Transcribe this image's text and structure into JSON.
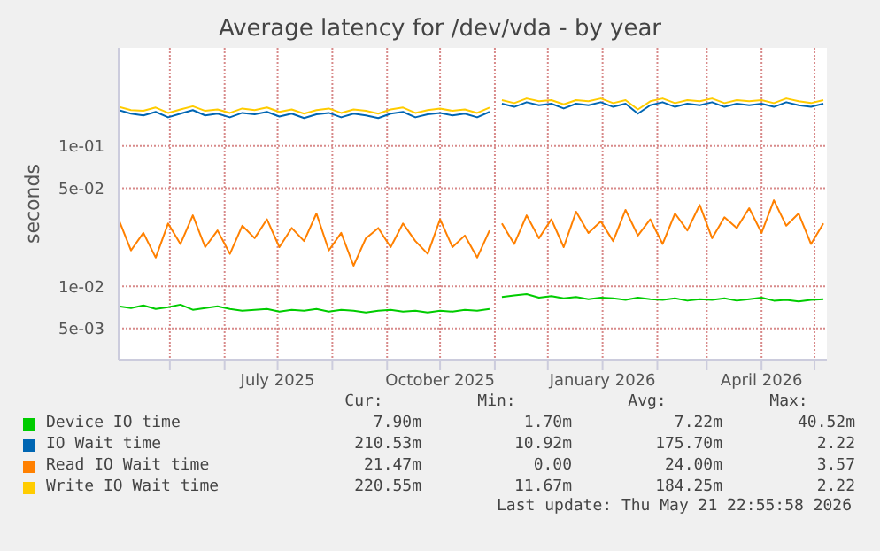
{
  "chart_data": {
    "type": "line",
    "title": "Average latency for /dev/vda - by year",
    "ylabel": "seconds",
    "log": "y",
    "grid": true,
    "legend": "bottom",
    "marker": "none",
    "line_style": "solid",
    "x": [
      "2025-04-02",
      "2025-04-09",
      "2025-04-16",
      "2025-04-23",
      "2025-04-30",
      "2025-05-07",
      "2025-05-14",
      "2025-05-21",
      "2025-05-28",
      "2025-06-04",
      "2025-06-11",
      "2025-06-18",
      "2025-06-25",
      "2025-07-02",
      "2025-07-09",
      "2025-07-16",
      "2025-07-23",
      "2025-07-30",
      "2025-08-06",
      "2025-08-13",
      "2025-08-20",
      "2025-08-27",
      "2025-09-03",
      "2025-09-10",
      "2025-09-17",
      "2025-09-24",
      "2025-10-01",
      "2025-10-08",
      "2025-10-15",
      "2025-10-22",
      "2025-10-29",
      "2025-11-01",
      "2025-11-05",
      "2025-11-12",
      "2025-11-19",
      "2025-11-26",
      "2025-12-03",
      "2025-12-10",
      "2025-12-17",
      "2025-12-24",
      "2025-12-31",
      "2026-01-07",
      "2026-01-14",
      "2026-01-21",
      "2026-01-28",
      "2026-02-04",
      "2026-02-11",
      "2026-02-18",
      "2026-02-25",
      "2026-03-04",
      "2026-03-11",
      "2026-03-18",
      "2026-03-25",
      "2026-04-01",
      "2026-04-08",
      "2026-04-15",
      "2026-04-22",
      "2026-04-29",
      "2026-05-06"
    ],
    "xlim": [
      "2025-04-02",
      "2026-05-08"
    ],
    "xticks": [
      {
        "value": "2025-05-01",
        "label": null
      },
      {
        "value": "2025-06-01",
        "label": null
      },
      {
        "value": "2025-07-01",
        "label": "July 2025"
      },
      {
        "value": "2025-08-01",
        "label": null
      },
      {
        "value": "2025-09-01",
        "label": null
      },
      {
        "value": "2025-10-01",
        "label": "October 2025"
      },
      {
        "value": "2025-11-01",
        "label": null
      },
      {
        "value": "2025-12-01",
        "label": null
      },
      {
        "value": "2026-01-01",
        "label": "January 2026"
      },
      {
        "value": "2026-02-01",
        "label": null
      },
      {
        "value": "2026-03-01",
        "label": null
      },
      {
        "value": "2026-04-01",
        "label": "April 2026"
      },
      {
        "value": "2026-05-01",
        "label": null
      }
    ],
    "ylim": [
      0.003,
      0.5
    ],
    "yticks": [
      {
        "value": 0.005,
        "label": "5e-03"
      },
      {
        "value": 0.01,
        "label": "1e-02"
      },
      {
        "value": 0.05,
        "label": "5e-02"
      },
      {
        "value": 0.1,
        "label": "1e-01"
      }
    ],
    "series": [
      {
        "name": "Device IO time",
        "color": "#00cc00",
        "values": [
          0.0072,
          0.007,
          0.0073,
          0.0069,
          0.0071,
          0.0074,
          0.0068,
          0.007,
          0.0072,
          0.0069,
          0.0067,
          0.0068,
          0.0069,
          0.0066,
          0.0068,
          0.0067,
          0.0069,
          0.0066,
          0.0068,
          0.0067,
          0.0065,
          0.0067,
          0.0068,
          0.0066,
          0.0067,
          0.0065,
          0.0067,
          0.0066,
          0.0068,
          0.0067,
          0.0069,
          null,
          0.0084,
          0.0086,
          0.0088,
          0.0083,
          0.0085,
          0.0082,
          0.0084,
          0.0081,
          0.0083,
          0.0082,
          0.008,
          0.0083,
          0.0081,
          0.008,
          0.0082,
          0.0079,
          0.0081,
          0.008,
          0.0082,
          0.0079,
          0.0081,
          0.0083,
          0.0079,
          0.008,
          0.0078,
          0.008,
          0.0081
        ]
      },
      {
        "name": "IO Wait time",
        "color": "#0066b3",
        "values": [
          0.18,
          0.17,
          0.165,
          0.175,
          0.16,
          0.17,
          0.18,
          0.165,
          0.17,
          0.16,
          0.172,
          0.168,
          0.175,
          0.162,
          0.17,
          0.158,
          0.168,
          0.172,
          0.16,
          0.17,
          0.165,
          0.158,
          0.17,
          0.175,
          0.16,
          0.168,
          0.172,
          0.165,
          0.17,
          0.16,
          0.175,
          null,
          0.2,
          0.19,
          0.205,
          0.195,
          0.2,
          0.185,
          0.2,
          0.195,
          0.205,
          0.19,
          0.2,
          0.17,
          0.195,
          0.205,
          0.19,
          0.2,
          0.195,
          0.205,
          0.19,
          0.2,
          0.195,
          0.2,
          0.19,
          0.205,
          0.195,
          0.19,
          0.2
        ]
      },
      {
        "name": "Read IO Wait time",
        "color": "#ff8000",
        "values": [
          0.03,
          0.018,
          0.024,
          0.016,
          0.028,
          0.02,
          0.032,
          0.019,
          0.025,
          0.017,
          0.027,
          0.022,
          0.03,
          0.019,
          0.026,
          0.021,
          0.033,
          0.018,
          0.024,
          0.014,
          0.022,
          0.026,
          0.019,
          0.028,
          0.021,
          0.017,
          0.03,
          0.019,
          0.023,
          0.016,
          0.025,
          null,
          0.028,
          0.02,
          0.032,
          0.022,
          0.03,
          0.019,
          0.034,
          0.024,
          0.029,
          0.021,
          0.035,
          0.023,
          0.03,
          0.02,
          0.033,
          0.025,
          0.038,
          0.022,
          0.031,
          0.026,
          0.036,
          0.024,
          0.041,
          0.027,
          0.033,
          0.02,
          0.028
        ]
      },
      {
        "name": "Write IO Wait time",
        "color": "#ffcc00",
        "values": [
          0.19,
          0.18,
          0.178,
          0.188,
          0.172,
          0.182,
          0.192,
          0.178,
          0.182,
          0.172,
          0.185,
          0.18,
          0.188,
          0.175,
          0.182,
          0.17,
          0.18,
          0.185,
          0.172,
          0.182,
          0.178,
          0.17,
          0.182,
          0.188,
          0.172,
          0.18,
          0.185,
          0.178,
          0.182,
          0.172,
          0.188,
          null,
          0.212,
          0.202,
          0.218,
          0.208,
          0.212,
          0.198,
          0.212,
          0.208,
          0.218,
          0.202,
          0.212,
          0.182,
          0.208,
          0.218,
          0.202,
          0.212,
          0.208,
          0.218,
          0.202,
          0.212,
          0.208,
          0.212,
          0.202,
          0.218,
          0.208,
          0.202,
          0.212
        ]
      }
    ],
    "annotations": [
      "Cur:",
      "Min:",
      "Avg:",
      "Max:",
      "7.90m",
      "1.70m",
      "7.22m",
      "40.52m",
      "210.53m",
      "10.92m",
      "175.70m",
      "2.22",
      "21.47m",
      "0.00",
      "24.00m",
      "3.57",
      "220.55m",
      "11.67m",
      "184.25m",
      "2.22",
      "Last update: Thu May 21 22:55:58 2026"
    ]
  }
}
